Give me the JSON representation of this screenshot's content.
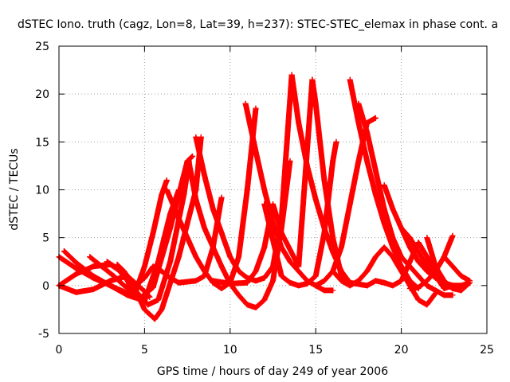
{
  "chart_data": {
    "type": "scatter",
    "title": "dSTEC Iono. truth (cagz, Lon=8, Lat=39, h=237): STEC-STEC_elemax in phase cont. a",
    "xlabel": "GPS time / hours of day 249 of year 2006",
    "ylabel": "dSTEC  / TECUs",
    "xlim": [
      0,
      25
    ],
    "ylim": [
      -5,
      25
    ],
    "xticks": [
      0,
      5,
      10,
      15,
      20,
      25
    ],
    "yticks": [
      -5,
      0,
      5,
      10,
      15,
      20,
      25
    ],
    "x_tick_labels": [
      "0",
      "5",
      "10",
      "15",
      "20",
      "25"
    ],
    "y_tick_labels": [
      "-5",
      "0",
      "5",
      "10",
      "15",
      "20",
      "25"
    ],
    "grid": true,
    "marker": "plus",
    "series_color": "#ff0000",
    "series": [
      {
        "x": [
          0.0,
          1.0,
          2.0,
          3.0,
          4.0,
          4.5,
          5.0,
          5.5,
          6.0,
          6.3
        ],
        "y": [
          3.0,
          1.8,
          0.8,
          0.0,
          -0.8,
          -0.5,
          2.0,
          5.5,
          9.5,
          11.0
        ]
      },
      {
        "x": [
          0.3,
          1.0,
          2.0,
          3.0,
          4.0,
          5.0,
          5.8,
          6.5,
          7.0
        ],
        "y": [
          3.6,
          2.4,
          1.0,
          0.0,
          -1.0,
          -1.6,
          2.5,
          7.5,
          10.0
        ]
      },
      {
        "x": [
          0.0,
          1.0,
          2.0,
          3.0,
          4.0,
          5.0,
          5.3
        ],
        "y": [
          0.0,
          -0.7,
          -0.4,
          0.5,
          1.0,
          -0.6,
          -1.2
        ]
      },
      {
        "x": [
          0.0,
          1.0,
          2.0,
          3.0,
          3.5,
          4.0,
          4.3
        ],
        "y": [
          0.0,
          1.2,
          2.0,
          2.2,
          1.6,
          0.5,
          -0.5
        ]
      },
      {
        "x": [
          1.8,
          2.5,
          3.2,
          3.8,
          4.3,
          4.8,
          5.5,
          6.5,
          7.5,
          7.8
        ],
        "y": [
          3.0,
          2.0,
          1.0,
          0.0,
          -0.6,
          -1.2,
          -0.2,
          6.0,
          13.0,
          13.5
        ]
      },
      {
        "x": [
          2.8,
          3.4,
          4.0,
          4.6,
          5.2,
          5.8,
          6.5,
          7.3,
          7.6
        ],
        "y": [
          2.5,
          1.8,
          0.6,
          -0.8,
          -2.0,
          -1.5,
          2.5,
          9.5,
          13.0
        ]
      },
      {
        "x": [
          3.4,
          3.8,
          4.2,
          4.6,
          5.0,
          5.3,
          5.6,
          6.0,
          7.0,
          8.0,
          8.3
        ],
        "y": [
          2.2,
          1.5,
          0.5,
          -1.0,
          -2.5,
          -3.0,
          -3.5,
          -2.5,
          3.0,
          10.0,
          15.5
        ]
      },
      {
        "x": [
          4.5,
          5.0,
          5.5,
          6.0,
          6.5,
          7.0,
          8.0,
          8.5,
          9.0,
          9.5
        ],
        "y": [
          0.0,
          0.8,
          2.0,
          1.5,
          0.8,
          0.3,
          0.5,
          1.0,
          4.0,
          9.2
        ]
      },
      {
        "x": [
          6.3,
          7.0,
          7.5,
          8.0,
          8.5,
          9.0,
          9.5,
          10.0,
          10.5,
          11.0,
          11.5
        ],
        "y": [
          10.0,
          7.0,
          5.0,
          3.0,
          1.5,
          0.3,
          -0.3,
          0.3,
          3.0,
          10.0,
          18.5
        ]
      },
      {
        "x": [
          7.6,
          8.0,
          8.5,
          9.0,
          9.5,
          10.0,
          10.5,
          11.0,
          11.5,
          12.0,
          12.5,
          13.0,
          13.5
        ],
        "y": [
          12.8,
          9.0,
          6.0,
          4.0,
          2.0,
          0.2,
          -1.0,
          -2.0,
          -2.3,
          -1.5,
          0.5,
          6.0,
          13.0
        ]
      },
      {
        "x": [
          8.0,
          8.5,
          9.0,
          9.5,
          10.0,
          10.5,
          11.0,
          11.5,
          12.0,
          12.5,
          13.0,
          13.6
        ],
        "y": [
          15.5,
          11.5,
          8.0,
          5.5,
          3.0,
          1.5,
          0.8,
          0.5,
          0.8,
          2.0,
          7.0,
          22.0
        ]
      },
      {
        "x": [
          9.0,
          10.0,
          11.0,
          11.5,
          12.0,
          12.5,
          13.0,
          14.0,
          14.8
        ],
        "y": [
          0.5,
          0.2,
          0.3,
          1.5,
          4.0,
          8.5,
          5.5,
          2.0,
          21.5
        ]
      },
      {
        "x": [
          10.9,
          11.5,
          12.0,
          12.5,
          13.0,
          13.5,
          14.0,
          14.5,
          15.0,
          15.5,
          16.0
        ],
        "y": [
          19.0,
          14.0,
          10.0,
          6.5,
          4.0,
          2.5,
          1.5,
          0.5,
          0.0,
          -0.5,
          -0.5
        ]
      },
      {
        "x": [
          12.0,
          13.0,
          13.5,
          14.0,
          14.5,
          15.0,
          15.5,
          16.0,
          16.2
        ],
        "y": [
          8.5,
          1.0,
          0.3,
          0.0,
          0.2,
          1.0,
          5.5,
          13.0,
          15.0
        ]
      },
      {
        "x": [
          13.6,
          14.0,
          14.5,
          15.0,
          15.5,
          16.0,
          16.5,
          17.0,
          18.0
        ],
        "y": [
          22.0,
          17.0,
          12.5,
          9.0,
          6.0,
          3.5,
          1.5,
          0.3,
          0.0
        ]
      },
      {
        "x": [
          14.8,
          15.0,
          15.5,
          16.0,
          16.5,
          17.0
        ],
        "y": [
          21.5,
          19.0,
          11.0,
          5.0,
          1.0,
          0.0
        ]
      },
      {
        "x": [
          15.0,
          15.5,
          16.0,
          16.5,
          17.0,
          17.5,
          18.0,
          18.5
        ],
        "y": [
          0.0,
          0.5,
          1.5,
          4.0,
          8.5,
          13.0,
          17.0,
          17.5
        ]
      },
      {
        "x": [
          17.0,
          17.5,
          18.0,
          18.5,
          19.0,
          19.5,
          20.0,
          20.5,
          21.0
        ],
        "y": [
          21.5,
          17.0,
          13.0,
          9.5,
          6.5,
          4.0,
          2.0,
          0.5,
          -0.3
        ]
      },
      {
        "x": [
          16.0,
          16.5,
          17.0,
          17.5,
          18.0,
          18.5,
          19.0,
          19.5,
          20.0,
          20.5,
          21.0,
          21.5,
          22.0
        ],
        "y": [
          1.5,
          0.5,
          0.0,
          0.5,
          1.5,
          3.0,
          4.0,
          3.0,
          1.5,
          0.0,
          -1.5,
          -2.0,
          -0.8
        ]
      },
      {
        "x": [
          17.5,
          18.0,
          18.5,
          19.0,
          19.5,
          20.0,
          20.5,
          21.0,
          21.5,
          22.0,
          22.5,
          23.0
        ],
        "y": [
          19.0,
          16.0,
          12.0,
          8.0,
          5.0,
          3.0,
          2.0,
          1.0,
          0.0,
          -0.5,
          -1.0,
          -1.0
        ]
      },
      {
        "x": [
          18.0,
          18.5,
          19.0,
          19.5,
          20.0,
          20.5,
          21.0,
          21.5,
          22.0,
          22.5,
          23.0
        ],
        "y": [
          0.0,
          0.5,
          0.3,
          0.0,
          0.5,
          2.5,
          4.5,
          3.0,
          1.0,
          -0.3,
          0.0
        ]
      },
      {
        "x": [
          19.0,
          19.5,
          20.0,
          20.5,
          21.0,
          21.5,
          22.0,
          22.5,
          23.0
        ],
        "y": [
          10.5,
          8.0,
          6.0,
          4.0,
          2.5,
          1.5,
          0.8,
          0.3,
          -0.3
        ]
      },
      {
        "x": [
          20.0,
          20.5,
          21.0,
          21.5,
          22.0,
          22.5,
          23.0,
          23.5,
          24.0
        ],
        "y": [
          6.0,
          5.0,
          3.5,
          2.0,
          1.0,
          0.3,
          0.0,
          0.0,
          0.3
        ]
      },
      {
        "x": [
          20.5,
          21.0,
          21.5,
          22.0,
          22.5,
          23.0
        ],
        "y": [
          -0.3,
          -0.2,
          0.5,
          1.5,
          3.0,
          5.2
        ]
      },
      {
        "x": [
          21.5,
          22.0,
          22.5,
          23.0,
          23.5,
          24.0
        ],
        "y": [
          5.0,
          2.0,
          0.5,
          -0.3,
          -0.5,
          0.3
        ]
      },
      {
        "x": [
          22.5,
          23.0,
          23.5,
          24.0
        ],
        "y": [
          3.0,
          2.0,
          1.0,
          0.5
        ]
      }
    ]
  }
}
